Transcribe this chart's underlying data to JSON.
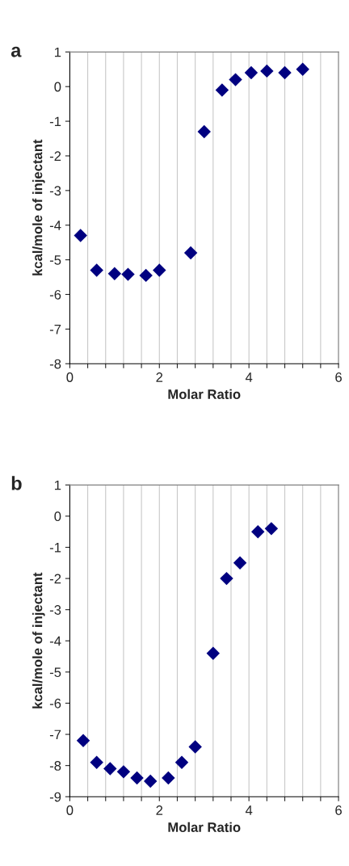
{
  "chart_data": [
    {
      "type": "scatter",
      "title": "a",
      "xlabel": "Molar Ratio",
      "ylabel": "kcal/mole of injectant",
      "marker": "diamond",
      "grid": "x",
      "xlim": [
        0,
        6
      ],
      "ylim": [
        -8,
        1
      ],
      "xticks": [
        0,
        {
          "value": 0.4,
          "label": null
        },
        {
          "value": 0.8,
          "label": null
        },
        {
          "value": 1.2,
          "label": null
        },
        {
          "value": 1.6,
          "label": null
        },
        2,
        {
          "value": 2.4,
          "label": null
        },
        {
          "value": 2.8,
          "label": null
        },
        {
          "value": 3.2,
          "label": null
        },
        {
          "value": 3.6,
          "label": null
        },
        4,
        {
          "value": 4.4,
          "label": null
        },
        {
          "value": 4.8,
          "label": null
        },
        {
          "value": 5.2,
          "label": null
        },
        {
          "value": 5.6,
          "label": null
        },
        6
      ],
      "yticks": [
        -8,
        -7,
        -6,
        -5,
        -4,
        -3,
        -2,
        -1,
        0,
        1
      ],
      "series": [
        {
          "color": "#000080",
          "x": [
            0.24,
            0.6,
            1.0,
            1.3,
            1.7,
            2.0,
            2.7,
            3.0,
            3.4,
            3.7,
            4.05,
            4.4,
            4.8,
            5.2
          ],
          "values": [
            -4.3,
            -5.3,
            -5.4,
            -5.42,
            -5.45,
            -5.3,
            -4.8,
            -1.3,
            -0.1,
            0.2,
            0.4,
            0.45,
            0.4,
            0.5
          ]
        }
      ]
    },
    {
      "type": "scatter",
      "title": "b",
      "xlabel": "Molar Ratio",
      "ylabel": "kcal/mole of injectant",
      "marker": "diamond",
      "grid": "x",
      "xlim": [
        0,
        6
      ],
      "ylim": [
        -9,
        1
      ],
      "xticks": [
        0,
        {
          "value": 0.4,
          "label": null
        },
        {
          "value": 0.8,
          "label": null
        },
        {
          "value": 1.2,
          "label": null
        },
        {
          "value": 1.6,
          "label": null
        },
        2,
        {
          "value": 2.4,
          "label": null
        },
        {
          "value": 2.8,
          "label": null
        },
        {
          "value": 3.2,
          "label": null
        },
        {
          "value": 3.6,
          "label": null
        },
        4,
        {
          "value": 4.4,
          "label": null
        },
        {
          "value": 4.8,
          "label": null
        },
        {
          "value": 5.2,
          "label": null
        },
        {
          "value": 5.6,
          "label": null
        },
        6
      ],
      "yticks": [
        -9,
        -8,
        -7,
        -6,
        -5,
        -4,
        -3,
        -2,
        -1,
        0,
        1
      ],
      "series": [
        {
          "color": "#000080",
          "x": [
            0.3,
            0.6,
            0.9,
            1.2,
            1.5,
            1.8,
            2.2,
            2.5,
            2.8,
            3.2,
            3.5,
            3.8,
            4.2,
            4.5
          ],
          "values": [
            -7.2,
            -7.9,
            -8.1,
            -8.2,
            -8.4,
            -8.5,
            -8.4,
            -7.9,
            -7.4,
            -4.4,
            -2.0,
            -1.5,
            -0.5,
            -0.4
          ]
        }
      ]
    }
  ]
}
